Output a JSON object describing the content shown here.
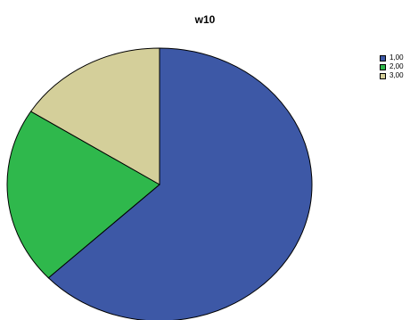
{
  "chart_data": {
    "type": "pie",
    "title": "w10",
    "categories": [
      "1,00",
      "2,00",
      "3,00"
    ],
    "values": [
      63,
      21,
      16
    ],
    "colors": [
      "#3d58a6",
      "#2fb84c",
      "#d4cf9a"
    ],
    "start_angle_deg": 0,
    "direction": "clockwise",
    "legend_position": "top-right"
  }
}
